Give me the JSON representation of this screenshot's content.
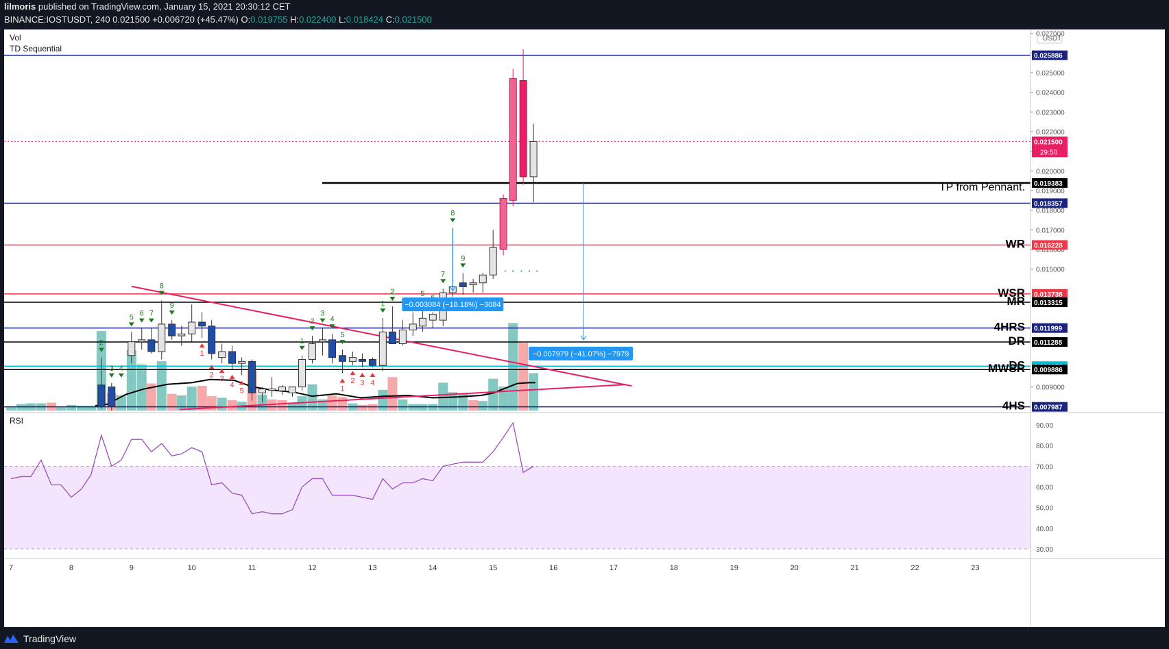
{
  "header": {
    "author": "lilmoris",
    "published": "published on TradingView.com, January 15, 2021 20:30:12 CET",
    "symbol": "BINANCE:IOSTUSDT, 240",
    "last": "0.021500",
    "change": "+0.006720 (+45.47%)",
    "o_label": "O:",
    "o": "0.019755",
    "h_label": "H:",
    "h": "0.022400",
    "l_label": "L:",
    "l": "0.018424",
    "c_label": "C:",
    "c": "0.021500"
  },
  "panes": {
    "vol_label": "Vol",
    "td_label": "TD Sequential",
    "rsi_label": "RSI"
  },
  "footer": {
    "brand": "TradingView"
  },
  "colors": {
    "up": "#e4e4e4",
    "down": "#1e4fa8",
    "pump": "#f06292",
    "dump": "#e91e63",
    "vol_up": "#84c9c1",
    "vol_down": "#f7a9a9",
    "rsi_line": "#9b4fc0",
    "rsi_band": "#f3e5fb",
    "level_blue": "#1a237e",
    "level_red": "#f23645",
    "level_black": "#000000",
    "level_cyan": "#00bcd4",
    "trend_pink": "#e91e63",
    "measure": "#2196f3"
  },
  "chart_data": {
    "type": "candlestick",
    "price_axis": {
      "currency": "USDT",
      "ylim": [
        0.0078,
        0.0272
      ],
      "ticks": [
        "0.009000",
        "0.015000",
        "0.016000",
        "0.017000",
        "0.018000",
        "0.019000",
        "0.020000",
        "0.021000",
        "0.022000",
        "0.023000",
        "0.024000",
        "0.025000",
        "0.026000",
        "0.027000"
      ]
    },
    "time_axis": {
      "labels": [
        "7",
        "8",
        "9",
        "10",
        "11",
        "12",
        "13",
        "14",
        "15",
        "16",
        "17",
        "18",
        "19",
        "20",
        "21",
        "22",
        "23"
      ],
      "xlim_days": [
        7,
        24
      ]
    },
    "levels": [
      {
        "value": 0.025886,
        "label": "",
        "tag": "0.025886",
        "color": "#1a237e"
      },
      {
        "value": 0.019383,
        "label": "TP from Pennant.",
        "tag": "0.019383",
        "color": "#000000"
      },
      {
        "value": 0.018357,
        "label": "",
        "tag": "0.018357",
        "color": "#1a237e"
      },
      {
        "value": 0.016228,
        "label": "WR",
        "tag": "0.016228",
        "color": "#f23645"
      },
      {
        "value": 0.013738,
        "label": "WSR",
        "tag": "0.013738",
        "color": "#f23645"
      },
      {
        "value": 0.013315,
        "label": "MR",
        "tag": "0.013315",
        "color": "#000000"
      },
      {
        "value": 0.011999,
        "label": "4HRS",
        "tag": "0.011999",
        "color": "#1a237e"
      },
      {
        "value": 0.011288,
        "label": "DR",
        "tag": "0.011288",
        "color": "#000000"
      },
      {
        "value": 0.010058,
        "label": "DS",
        "tag": "0.010058",
        "color": "#00bcd4"
      },
      {
        "value": 0.009886,
        "label": "MWSR",
        "tag": "0.009886",
        "color": "#000000"
      },
      {
        "value": 0.007987,
        "label": "4HS",
        "tag": "0.007987",
        "color": "#1a237e"
      }
    ],
    "last_price": {
      "value": 0.0215,
      "tag": "0.021500",
      "countdown": "29:50"
    },
    "candles": [
      {
        "d": 8.5,
        "o": 0.0091,
        "h": 0.0105,
        "l": 0.0079,
        "c": 0.008
      },
      {
        "d": 8.67,
        "o": 0.009,
        "h": 0.0092,
        "l": 0.0078,
        "c": 0.008
      },
      {
        "d": 9.0,
        "o": 0.0106,
        "h": 0.0118,
        "l": 0.0102,
        "c": 0.0113
      },
      {
        "d": 9.17,
        "o": 0.0113,
        "h": 0.012,
        "l": 0.0109,
        "c": 0.0114
      },
      {
        "d": 9.33,
        "o": 0.0114,
        "h": 0.012,
        "l": 0.0107,
        "c": 0.0108
      },
      {
        "d": 9.5,
        "o": 0.0108,
        "h": 0.0134,
        "l": 0.0104,
        "c": 0.0122
      },
      {
        "d": 9.67,
        "o": 0.0122,
        "h": 0.0124,
        "l": 0.0114,
        "c": 0.0116
      },
      {
        "d": 9.83,
        "o": 0.0116,
        "h": 0.0121,
        "l": 0.0111,
        "c": 0.0117
      },
      {
        "d": 10.0,
        "o": 0.0117,
        "h": 0.0132,
        "l": 0.0113,
        "c": 0.0123
      },
      {
        "d": 10.17,
        "o": 0.0123,
        "h": 0.0128,
        "l": 0.0115,
        "c": 0.0121
      },
      {
        "d": 10.33,
        "o": 0.0121,
        "h": 0.0124,
        "l": 0.0104,
        "c": 0.0107
      },
      {
        "d": 10.5,
        "o": 0.0105,
        "h": 0.0112,
        "l": 0.0102,
        "c": 0.0108
      },
      {
        "d": 10.67,
        "o": 0.0108,
        "h": 0.0111,
        "l": 0.0099,
        "c": 0.0102
      },
      {
        "d": 10.83,
        "o": 0.0102,
        "h": 0.0105,
        "l": 0.0096,
        "c": 0.0103
      },
      {
        "d": 11.0,
        "o": 0.0103,
        "h": 0.0104,
        "l": 0.0083,
        "c": 0.0087
      },
      {
        "d": 11.17,
        "o": 0.0087,
        "h": 0.009,
        "l": 0.0082,
        "c": 0.0089
      },
      {
        "d": 11.33,
        "o": 0.0089,
        "h": 0.0095,
        "l": 0.0085,
        "c": 0.0089
      },
      {
        "d": 11.5,
        "o": 0.0088,
        "h": 0.0091,
        "l": 0.0086,
        "c": 0.009
      },
      {
        "d": 11.67,
        "o": 0.0087,
        "h": 0.009,
        "l": 0.0085,
        "c": 0.009
      },
      {
        "d": 11.83,
        "o": 0.009,
        "h": 0.0106,
        "l": 0.0088,
        "c": 0.0104
      },
      {
        "d": 12.0,
        "o": 0.0104,
        "h": 0.0116,
        "l": 0.0102,
        "c": 0.0112
      },
      {
        "d": 12.17,
        "o": 0.0113,
        "h": 0.012,
        "l": 0.0106,
        "c": 0.0114
      },
      {
        "d": 12.33,
        "o": 0.0114,
        "h": 0.0117,
        "l": 0.0102,
        "c": 0.0105
      },
      {
        "d": 12.5,
        "o": 0.0106,
        "h": 0.0109,
        "l": 0.0097,
        "c": 0.0103
      },
      {
        "d": 12.67,
        "o": 0.0103,
        "h": 0.0108,
        "l": 0.0101,
        "c": 0.0105
      },
      {
        "d": 12.83,
        "o": 0.0104,
        "h": 0.0107,
        "l": 0.01,
        "c": 0.0103
      },
      {
        "d": 13.0,
        "o": 0.0104,
        "h": 0.0105,
        "l": 0.01,
        "c": 0.0101
      },
      {
        "d": 13.17,
        "o": 0.0101,
        "h": 0.0125,
        "l": 0.0098,
        "c": 0.0118
      },
      {
        "d": 13.33,
        "o": 0.0118,
        "h": 0.0131,
        "l": 0.0113,
        "c": 0.0112
      },
      {
        "d": 13.5,
        "o": 0.0112,
        "h": 0.0124,
        "l": 0.0111,
        "c": 0.0119
      },
      {
        "d": 13.67,
        "o": 0.0119,
        "h": 0.0128,
        "l": 0.0116,
        "c": 0.0122
      },
      {
        "d": 13.83,
        "o": 0.0121,
        "h": 0.013,
        "l": 0.0118,
        "c": 0.0125
      },
      {
        "d": 14.0,
        "o": 0.0124,
        "h": 0.0128,
        "l": 0.012,
        "c": 0.0127
      },
      {
        "d": 14.17,
        "o": 0.0124,
        "h": 0.014,
        "l": 0.0121,
        "c": 0.0138
      },
      {
        "d": 14.33,
        "o": 0.0138,
        "h": 0.0171,
        "l": 0.0136,
        "c": 0.0141
      },
      {
        "d": 14.5,
        "o": 0.0143,
        "h": 0.0148,
        "l": 0.0137,
        "c": 0.0141
      },
      {
        "d": 14.67,
        "o": 0.0142,
        "h": 0.0145,
        "l": 0.0138,
        "c": 0.0143
      },
      {
        "d": 14.83,
        "o": 0.0143,
        "h": 0.0148,
        "l": 0.0138,
        "c": 0.0147
      },
      {
        "d": 15.0,
        "o": 0.0147,
        "h": 0.017,
        "l": 0.0145,
        "c": 0.0161
      },
      {
        "d": 15.17,
        "o": 0.016,
        "h": 0.0188,
        "l": 0.0157,
        "c": 0.0186
      },
      {
        "d": 15.33,
        "o": 0.0185,
        "h": 0.0252,
        "l": 0.0182,
        "c": 0.0247
      },
      {
        "d": 15.5,
        "o": 0.0246,
        "h": 0.0262,
        "l": 0.0193,
        "c": 0.0197
      },
      {
        "d": 15.67,
        "o": 0.0197,
        "h": 0.0224,
        "l": 0.0184,
        "c": 0.0215
      }
    ],
    "volume": [
      {
        "d": 7.0,
        "v": 0.04,
        "dir": "up"
      },
      {
        "d": 7.17,
        "v": 0.08,
        "dir": "up"
      },
      {
        "d": 7.33,
        "v": 0.09,
        "dir": "up"
      },
      {
        "d": 7.5,
        "v": 0.09,
        "dir": "up"
      },
      {
        "d": 7.67,
        "v": 0.1,
        "dir": "down"
      },
      {
        "d": 7.83,
        "v": 0.04,
        "dir": "up"
      },
      {
        "d": 8.0,
        "v": 0.07,
        "dir": "up"
      },
      {
        "d": 8.17,
        "v": 0.06,
        "dir": "up"
      },
      {
        "d": 8.33,
        "v": 0.06,
        "dir": "up"
      },
      {
        "d": 8.5,
        "v": 1.0,
        "dir": "up"
      },
      {
        "d": 8.67,
        "v": 0.22,
        "dir": "down"
      },
      {
        "d": 8.83,
        "v": 0.19,
        "dir": "up"
      },
      {
        "d": 9.0,
        "v": 0.76,
        "dir": "up"
      },
      {
        "d": 9.17,
        "v": 0.58,
        "dir": "up"
      },
      {
        "d": 9.33,
        "v": 0.34,
        "dir": "down"
      },
      {
        "d": 9.5,
        "v": 0.62,
        "dir": "up"
      },
      {
        "d": 9.67,
        "v": 0.21,
        "dir": "down"
      },
      {
        "d": 9.83,
        "v": 0.19,
        "dir": "up"
      },
      {
        "d": 10.0,
        "v": 0.3,
        "dir": "up"
      },
      {
        "d": 10.17,
        "v": 0.31,
        "dir": "down"
      },
      {
        "d": 10.33,
        "v": 0.18,
        "dir": "down"
      },
      {
        "d": 10.5,
        "v": 0.16,
        "dir": "up"
      },
      {
        "d": 10.67,
        "v": 0.13,
        "dir": "down"
      },
      {
        "d": 10.83,
        "v": 0.11,
        "dir": "up"
      },
      {
        "d": 11.0,
        "v": 0.5,
        "dir": "down"
      },
      {
        "d": 11.17,
        "v": 0.2,
        "dir": "up"
      },
      {
        "d": 11.33,
        "v": 0.14,
        "dir": "down"
      },
      {
        "d": 11.5,
        "v": 0.13,
        "dir": "down"
      },
      {
        "d": 11.67,
        "v": 0.1,
        "dir": "up"
      },
      {
        "d": 11.83,
        "v": 0.18,
        "dir": "up"
      },
      {
        "d": 12.0,
        "v": 0.33,
        "dir": "up"
      },
      {
        "d": 12.17,
        "v": 0.14,
        "dir": "up"
      },
      {
        "d": 12.33,
        "v": 0.19,
        "dir": "down"
      },
      {
        "d": 12.5,
        "v": 0.17,
        "dir": "down"
      },
      {
        "d": 12.67,
        "v": 0.09,
        "dir": "up"
      },
      {
        "d": 12.83,
        "v": 0.07,
        "dir": "down"
      },
      {
        "d": 13.0,
        "v": 0.08,
        "dir": "down"
      },
      {
        "d": 13.17,
        "v": 0.26,
        "dir": "up"
      },
      {
        "d": 13.33,
        "v": 0.42,
        "dir": "down"
      },
      {
        "d": 13.5,
        "v": 0.14,
        "dir": "up"
      },
      {
        "d": 13.67,
        "v": 0.08,
        "dir": "up"
      },
      {
        "d": 13.83,
        "v": 0.08,
        "dir": "up"
      },
      {
        "d": 14.0,
        "v": 0.08,
        "dir": "up"
      },
      {
        "d": 14.17,
        "v": 0.35,
        "dir": "up"
      },
      {
        "d": 14.33,
        "v": 0.23,
        "dir": "up"
      },
      {
        "d": 14.5,
        "v": 0.21,
        "dir": "up"
      },
      {
        "d": 14.67,
        "v": 0.13,
        "dir": "down"
      },
      {
        "d": 14.83,
        "v": 0.12,
        "dir": "up"
      },
      {
        "d": 15.0,
        "v": 0.4,
        "dir": "up"
      },
      {
        "d": 15.17,
        "v": 0.3,
        "dir": "up"
      },
      {
        "d": 15.33,
        "v": 1.1,
        "dir": "up"
      },
      {
        "d": 15.5,
        "v": 0.85,
        "dir": "down"
      },
      {
        "d": 15.67,
        "v": 0.47,
        "dir": "up"
      }
    ],
    "volume_ma": [
      {
        "d": 8.4,
        "v": 0.06
      },
      {
        "d": 8.6,
        "v": 0.08
      },
      {
        "d": 8.9,
        "v": 0.2
      },
      {
        "d": 9.2,
        "v": 0.27
      },
      {
        "d": 9.6,
        "v": 0.33
      },
      {
        "d": 10.0,
        "v": 0.35
      },
      {
        "d": 10.3,
        "v": 0.39
      },
      {
        "d": 10.7,
        "v": 0.38
      },
      {
        "d": 11.0,
        "v": 0.3
      },
      {
        "d": 11.3,
        "v": 0.26
      },
      {
        "d": 11.7,
        "v": 0.23
      },
      {
        "d": 12.0,
        "v": 0.18
      },
      {
        "d": 12.4,
        "v": 0.21
      },
      {
        "d": 12.8,
        "v": 0.16
      },
      {
        "d": 13.2,
        "v": 0.18
      },
      {
        "d": 13.6,
        "v": 0.19
      },
      {
        "d": 14.0,
        "v": 0.16
      },
      {
        "d": 14.4,
        "v": 0.17
      },
      {
        "d": 14.8,
        "v": 0.19
      },
      {
        "d": 15.0,
        "v": 0.22
      },
      {
        "d": 15.2,
        "v": 0.28
      },
      {
        "d": 15.4,
        "v": 0.34
      },
      {
        "d": 15.6,
        "v": 0.35
      },
      {
        "d": 15.7,
        "v": 0.35
      }
    ],
    "td_sequential": [
      {
        "d": 8.5,
        "n": "2",
        "side": "buy"
      },
      {
        "d": 8.67,
        "n": "3",
        "side": "buy"
      },
      {
        "d": 8.83,
        "n": "4",
        "side": "buy"
      },
      {
        "d": 9.0,
        "n": "5",
        "side": "buy"
      },
      {
        "d": 9.17,
        "n": "6",
        "side": "buy"
      },
      {
        "d": 9.33,
        "n": "7",
        "side": "buy"
      },
      {
        "d": 9.5,
        "n": "8",
        "side": "buy"
      },
      {
        "d": 9.67,
        "n": "9",
        "side": "buy"
      },
      {
        "d": 10.17,
        "n": "1",
        "side": "sell"
      },
      {
        "d": 10.33,
        "n": "2",
        "side": "sell"
      },
      {
        "d": 10.5,
        "n": "3",
        "side": "sell"
      },
      {
        "d": 10.67,
        "n": "4",
        "side": "sell"
      },
      {
        "d": 10.83,
        "n": "5",
        "side": "sell"
      },
      {
        "d": 11.83,
        "n": "1",
        "side": "buy"
      },
      {
        "d": 12.0,
        "n": "2",
        "side": "buy"
      },
      {
        "d": 12.17,
        "n": "3",
        "side": "buy"
      },
      {
        "d": 12.33,
        "n": "4",
        "side": "buy"
      },
      {
        "d": 12.5,
        "n": "5",
        "side": "buy"
      },
      {
        "d": 12.5,
        "n": "1",
        "side": "sell"
      },
      {
        "d": 12.67,
        "n": "2",
        "side": "sell"
      },
      {
        "d": 12.83,
        "n": "3",
        "side": "sell"
      },
      {
        "d": 13.0,
        "n": "4",
        "side": "sell"
      },
      {
        "d": 13.17,
        "n": "1",
        "side": "buy"
      },
      {
        "d": 13.33,
        "n": "2",
        "side": "buy"
      },
      {
        "d": 13.83,
        "n": "5",
        "side": "buy"
      },
      {
        "d": 14.0,
        "n": "6",
        "side": "buy"
      },
      {
        "d": 14.17,
        "n": "7",
        "side": "buy"
      },
      {
        "d": 14.33,
        "n": "8",
        "side": "buy"
      },
      {
        "d": 14.5,
        "n": "9",
        "side": "buy"
      }
    ],
    "trendlines": [
      {
        "d1": 9.0,
        "p1": 0.01412,
        "d2": 17.3,
        "p2": 0.00905
      },
      {
        "d1": 9.8,
        "p1": 0.00785,
        "d2": 17.2,
        "p2": 0.00912
      }
    ],
    "measurements": [
      {
        "d": 14.33,
        "from": 0.017,
        "to": 0.0139,
        "label": "−0.003084 (−18.18%) −3084"
      },
      {
        "d": 16.5,
        "from": 0.01938,
        "to": 0.0114,
        "label": "−0.007979 (−41.07%) −7979"
      }
    ],
    "rsi": {
      "ticks": [
        "90.00",
        "80.00",
        "70.00",
        "60.00",
        "50.00",
        "40.00",
        "30.00"
      ],
      "ylim": [
        26,
        95
      ],
      "band": [
        30,
        70
      ],
      "values": [
        {
          "d": 7.0,
          "v": 64
        },
        {
          "d": 7.17,
          "v": 65
        },
        {
          "d": 7.33,
          "v": 65
        },
        {
          "d": 7.5,
          "v": 73
        },
        {
          "d": 7.67,
          "v": 61
        },
        {
          "d": 7.83,
          "v": 61
        },
        {
          "d": 8.0,
          "v": 55
        },
        {
          "d": 8.17,
          "v": 59
        },
        {
          "d": 8.33,
          "v": 66
        },
        {
          "d": 8.5,
          "v": 85
        },
        {
          "d": 8.67,
          "v": 70
        },
        {
          "d": 8.83,
          "v": 73
        },
        {
          "d": 9.0,
          "v": 83
        },
        {
          "d": 9.17,
          "v": 83
        },
        {
          "d": 9.33,
          "v": 77
        },
        {
          "d": 9.5,
          "v": 81
        },
        {
          "d": 9.67,
          "v": 75
        },
        {
          "d": 9.83,
          "v": 76
        },
        {
          "d": 10.0,
          "v": 79
        },
        {
          "d": 10.17,
          "v": 77
        },
        {
          "d": 10.33,
          "v": 61
        },
        {
          "d": 10.5,
          "v": 62
        },
        {
          "d": 10.67,
          "v": 57
        },
        {
          "d": 10.83,
          "v": 56
        },
        {
          "d": 11.0,
          "v": 47
        },
        {
          "d": 11.17,
          "v": 48
        },
        {
          "d": 11.33,
          "v": 47
        },
        {
          "d": 11.5,
          "v": 47
        },
        {
          "d": 11.67,
          "v": 49
        },
        {
          "d": 11.83,
          "v": 60
        },
        {
          "d": 12.0,
          "v": 64
        },
        {
          "d": 12.17,
          "v": 64
        },
        {
          "d": 12.33,
          "v": 56
        },
        {
          "d": 12.5,
          "v": 56
        },
        {
          "d": 12.67,
          "v": 56
        },
        {
          "d": 12.83,
          "v": 55
        },
        {
          "d": 13.0,
          "v": 54
        },
        {
          "d": 13.17,
          "v": 64
        },
        {
          "d": 13.33,
          "v": 59
        },
        {
          "d": 13.5,
          "v": 62
        },
        {
          "d": 13.67,
          "v": 62
        },
        {
          "d": 13.83,
          "v": 64
        },
        {
          "d": 14.0,
          "v": 63
        },
        {
          "d": 14.17,
          "v": 70
        },
        {
          "d": 14.33,
          "v": 71
        },
        {
          "d": 14.5,
          "v": 72
        },
        {
          "d": 14.67,
          "v": 72
        },
        {
          "d": 14.83,
          "v": 72
        },
        {
          "d": 15.0,
          "v": 77
        },
        {
          "d": 15.17,
          "v": 84
        },
        {
          "d": 15.33,
          "v": 91
        },
        {
          "d": 15.5,
          "v": 67
        },
        {
          "d": 15.67,
          "v": 70
        }
      ]
    }
  }
}
